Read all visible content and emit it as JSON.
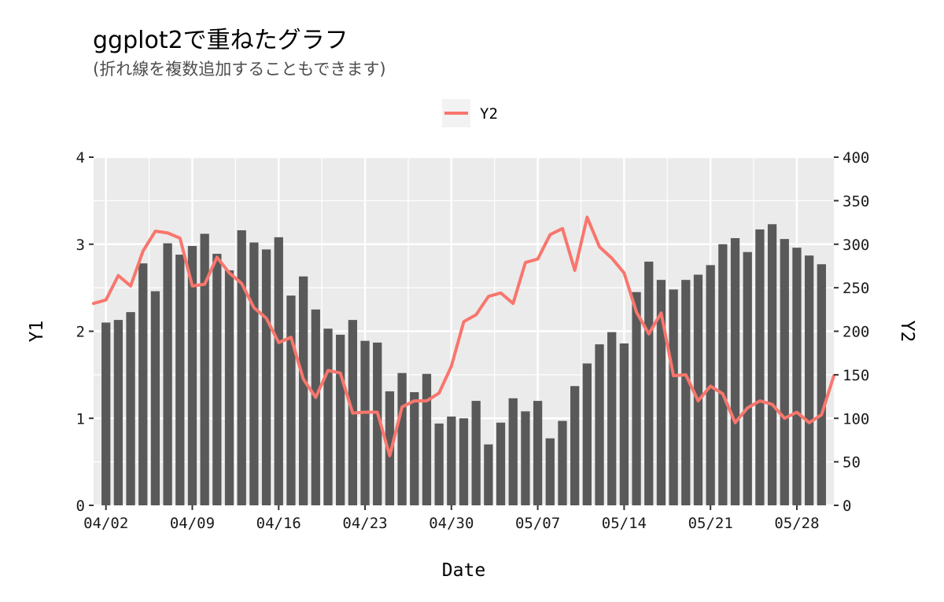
{
  "title": "ggplot2で重ねたグラフ",
  "subtitle": "(折れ線を複数追加することもできます)",
  "chart_data": {
    "type": "bar",
    "xlabel": "Date",
    "ylabel": "Y1",
    "y2label": "Y2",
    "ylim": [
      0,
      4
    ],
    "y2lim": [
      0,
      400
    ],
    "yticks": [
      "0",
      "1",
      "2",
      "3",
      "4"
    ],
    "y2ticks": [
      "0",
      "50",
      "100",
      "150",
      "200",
      "250",
      "300",
      "350",
      "400"
    ],
    "xticks": [
      "04/02",
      "04/09",
      "04/16",
      "04/23",
      "04/30",
      "05/07",
      "05/14",
      "05/21",
      "05/28"
    ],
    "x": [
      "04/01",
      "04/02",
      "04/03",
      "04/04",
      "04/05",
      "04/06",
      "04/07",
      "04/08",
      "04/09",
      "04/10",
      "04/11",
      "04/12",
      "04/13",
      "04/14",
      "04/15",
      "04/16",
      "04/17",
      "04/18",
      "04/19",
      "04/20",
      "04/21",
      "04/22",
      "04/23",
      "04/24",
      "04/25",
      "04/26",
      "04/27",
      "04/28",
      "04/29",
      "04/30",
      "05/01",
      "05/02",
      "05/03",
      "05/04",
      "05/05",
      "05/06",
      "05/07",
      "05/08",
      "05/09",
      "05/10",
      "05/11",
      "05/12",
      "05/13",
      "05/14",
      "05/15",
      "05/16",
      "05/17",
      "05/18",
      "05/19",
      "05/20",
      "05/21",
      "05/22",
      "05/23",
      "05/24",
      "05/25",
      "05/26",
      "05/27",
      "05/28",
      "05/29",
      "05/30",
      "05/31"
    ],
    "bars": {
      "name": "Y1",
      "color": "#595959",
      "values": [
        null,
        2.1,
        2.13,
        2.22,
        2.78,
        2.46,
        3.01,
        2.88,
        2.98,
        3.12,
        2.89,
        2.7,
        3.16,
        3.02,
        2.94,
        3.08,
        2.41,
        2.63,
        2.25,
        2.03,
        1.96,
        2.13,
        1.89,
        1.87,
        1.31,
        1.52,
        1.3,
        1.51,
        0.94,
        1.02,
        1.0,
        1.2,
        0.7,
        0.95,
        1.23,
        1.08,
        1.2,
        0.77,
        0.97,
        1.37,
        1.63,
        1.85,
        1.99,
        1.86,
        2.45,
        2.8,
        2.59,
        2.48,
        2.59,
        2.65,
        2.76,
        3.0,
        3.07,
        2.91,
        3.17,
        3.23,
        3.06,
        2.96,
        2.87,
        2.77,
        null
      ]
    },
    "line": {
      "name": "Y2",
      "color": "#F8766D",
      "values": [
        232,
        236,
        264,
        252,
        292,
        315,
        313,
        307,
        252,
        254,
        285,
        267,
        255,
        227,
        215,
        187,
        193,
        145,
        124,
        155,
        152,
        106,
        107,
        107,
        57,
        113,
        120,
        120,
        129,
        160,
        211,
        219,
        240,
        244,
        232,
        279,
        283,
        311,
        318,
        270,
        331,
        297,
        284,
        267,
        222,
        197,
        221,
        149,
        150,
        120,
        137,
        128,
        95,
        112,
        120,
        116,
        100,
        107,
        95,
        104,
        149
      ]
    },
    "legend": {
      "position": "top",
      "items": [
        "Y2"
      ]
    },
    "grid": true,
    "panel_background": "#EBEBEB",
    "grid_color": "#FFFFFF"
  }
}
